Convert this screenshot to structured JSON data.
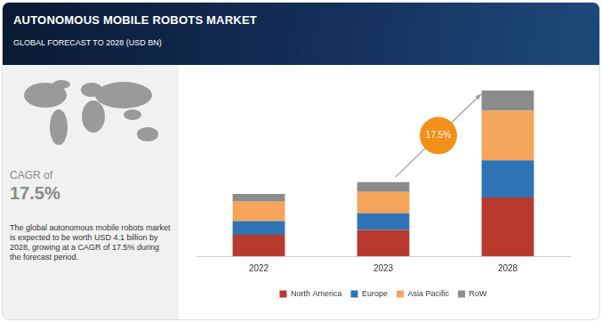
{
  "chart_data": {
    "type": "bar",
    "title": "AUTONOMOUS MOBILE ROBOTS MARKET",
    "subtitle": "GLOBAL FORECAST TO 2028 (USD BN)",
    "categories": [
      "2022",
      "2023",
      "2028"
    ],
    "series": [
      {
        "name": "North America",
        "color": "#b83a2e",
        "values": [
          0.53,
          0.65,
          1.45
        ]
      },
      {
        "name": "Europe",
        "color": "#2f74b5",
        "values": [
          0.34,
          0.41,
          0.92
        ]
      },
      {
        "name": "Asia Pacific",
        "color": "#f5a55a",
        "values": [
          0.48,
          0.53,
          1.23
        ]
      },
      {
        "name": "RoW",
        "color": "#8c8c8c",
        "values": [
          0.19,
          0.24,
          0.5
        ]
      }
    ],
    "stacked": true,
    "ylim": [
      0,
      4.6
    ],
    "grid": false,
    "tick_labels": "x",
    "legend": "bottom",
    "annotations": [
      "17.5%"
    ]
  },
  "sidebar": {
    "cagr_label": "CAGR of",
    "cagr_value": "17.5%",
    "description": "The global autonomous mobile robots market is expected to be worth USD 4.1 billion by 2028, growing at a CAGR of 17.5% during the forecast period."
  }
}
